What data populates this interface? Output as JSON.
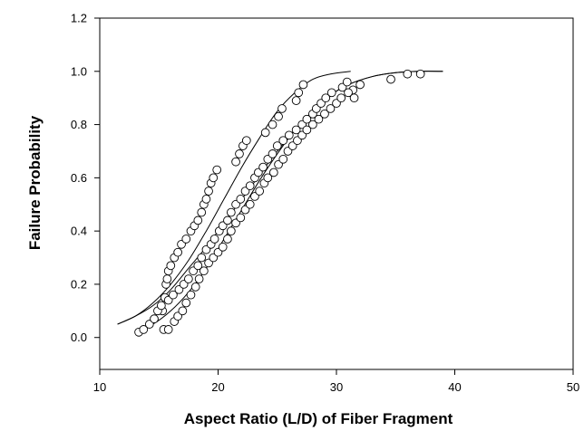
{
  "chart_data": {
    "type": "scatter",
    "xlabel": "Aspect Ratio (L/D) of Fiber Fragment",
    "ylabel": "Failure Probability",
    "xlim": [
      10,
      50
    ],
    "ylim": [
      -0.12,
      1.2
    ],
    "x_ticks": [
      10,
      20,
      30,
      40,
      50
    ],
    "x_tick_labels": [
      "10",
      "20",
      "30",
      "40",
      "50"
    ],
    "y_ticks": [
      0.0,
      0.2,
      0.4,
      0.6,
      0.8,
      1.0,
      1.2
    ],
    "y_tick_labels": [
      "0.0",
      "0.2",
      "0.4",
      "0.6",
      "0.8",
      "1.0",
      "1.2"
    ],
    "grid": false,
    "marker_color": "#ffffff",
    "line_color": "#000000",
    "series": [
      {
        "kind": "points",
        "points": [
          [
            15.3,
            0.1
          ],
          [
            15.5,
            0.15
          ],
          [
            15.6,
            0.2
          ],
          [
            15.7,
            0.22
          ],
          [
            15.8,
            0.25
          ],
          [
            16.0,
            0.27
          ],
          [
            16.3,
            0.3
          ],
          [
            16.6,
            0.32
          ],
          [
            16.9,
            0.35
          ],
          [
            17.3,
            0.37
          ],
          [
            17.7,
            0.4
          ],
          [
            18.0,
            0.42
          ],
          [
            18.3,
            0.44
          ],
          [
            18.6,
            0.47
          ],
          [
            18.8,
            0.5
          ],
          [
            19.0,
            0.52
          ],
          [
            19.2,
            0.55
          ],
          [
            19.4,
            0.58
          ],
          [
            19.6,
            0.6
          ],
          [
            19.9,
            0.63
          ],
          [
            21.5,
            0.66
          ],
          [
            21.8,
            0.69
          ],
          [
            22.1,
            0.72
          ],
          [
            22.4,
            0.74
          ],
          [
            24.0,
            0.77
          ],
          [
            24.6,
            0.8
          ],
          [
            25.1,
            0.83
          ],
          [
            25.4,
            0.86
          ],
          [
            26.6,
            0.89
          ],
          [
            26.8,
            0.92
          ],
          [
            27.2,
            0.95
          ]
        ]
      },
      {
        "kind": "points",
        "points": [
          [
            13.3,
            0.02
          ],
          [
            13.7,
            0.03
          ],
          [
            14.2,
            0.05
          ],
          [
            14.6,
            0.07
          ],
          [
            14.9,
            0.1
          ],
          [
            15.2,
            0.12
          ],
          [
            15.8,
            0.14
          ],
          [
            16.2,
            0.16
          ],
          [
            16.7,
            0.18
          ],
          [
            17.1,
            0.2
          ],
          [
            17.5,
            0.22
          ],
          [
            17.9,
            0.25
          ],
          [
            18.3,
            0.27
          ],
          [
            18.6,
            0.3
          ],
          [
            19.0,
            0.33
          ],
          [
            19.4,
            0.35
          ],
          [
            19.7,
            0.37
          ],
          [
            20.1,
            0.4
          ],
          [
            20.4,
            0.42
          ],
          [
            20.8,
            0.44
          ],
          [
            21.1,
            0.47
          ],
          [
            21.5,
            0.5
          ],
          [
            21.9,
            0.52
          ],
          [
            22.3,
            0.55
          ],
          [
            22.7,
            0.57
          ],
          [
            23.1,
            0.6
          ],
          [
            23.4,
            0.62
          ],
          [
            23.8,
            0.64
          ],
          [
            24.2,
            0.67
          ],
          [
            24.6,
            0.69
          ],
          [
            25.0,
            0.72
          ],
          [
            25.5,
            0.74
          ],
          [
            26.0,
            0.76
          ],
          [
            26.6,
            0.78
          ],
          [
            27.1,
            0.8
          ],
          [
            27.5,
            0.82
          ],
          [
            28.0,
            0.84
          ],
          [
            28.3,
            0.86
          ],
          [
            28.7,
            0.88
          ],
          [
            29.1,
            0.9
          ],
          [
            29.6,
            0.92
          ],
          [
            30.5,
            0.94
          ],
          [
            30.9,
            0.96
          ],
          [
            31.4,
            0.93
          ],
          [
            32.0,
            0.95
          ],
          [
            34.6,
            0.97
          ],
          [
            36.0,
            0.99
          ],
          [
            37.1,
            0.99
          ]
        ]
      },
      {
        "kind": "points",
        "points": [
          [
            15.4,
            0.03
          ],
          [
            15.8,
            0.03
          ],
          [
            16.3,
            0.06
          ],
          [
            16.6,
            0.08
          ],
          [
            17.0,
            0.1
          ],
          [
            17.3,
            0.13
          ],
          [
            17.7,
            0.16
          ],
          [
            18.1,
            0.19
          ],
          [
            18.4,
            0.22
          ],
          [
            18.8,
            0.25
          ],
          [
            19.2,
            0.28
          ],
          [
            19.6,
            0.3
          ],
          [
            20.0,
            0.32
          ],
          [
            20.4,
            0.34
          ],
          [
            20.8,
            0.37
          ],
          [
            21.1,
            0.4
          ],
          [
            21.5,
            0.43
          ],
          [
            21.9,
            0.45
          ],
          [
            22.3,
            0.48
          ],
          [
            22.7,
            0.5
          ],
          [
            23.1,
            0.53
          ],
          [
            23.5,
            0.55
          ],
          [
            23.9,
            0.58
          ],
          [
            24.2,
            0.6
          ],
          [
            24.7,
            0.62
          ],
          [
            25.1,
            0.65
          ],
          [
            25.5,
            0.67
          ],
          [
            25.9,
            0.7
          ],
          [
            26.3,
            0.72
          ],
          [
            26.7,
            0.74
          ],
          [
            27.1,
            0.76
          ],
          [
            27.5,
            0.78
          ],
          [
            28.0,
            0.8
          ],
          [
            28.5,
            0.82
          ],
          [
            29.0,
            0.84
          ],
          [
            29.5,
            0.86
          ],
          [
            30.0,
            0.88
          ],
          [
            30.4,
            0.9
          ],
          [
            31.0,
            0.92
          ],
          [
            31.5,
            0.9
          ]
        ]
      },
      {
        "kind": "curve",
        "points": [
          [
            11.5,
            0.05
          ],
          [
            13,
            0.08
          ],
          [
            14.5,
            0.13
          ],
          [
            16,
            0.2
          ],
          [
            17.5,
            0.29
          ],
          [
            19,
            0.4
          ],
          [
            20.5,
            0.52
          ],
          [
            22,
            0.64
          ],
          [
            23.5,
            0.75
          ],
          [
            25,
            0.85
          ],
          [
            26.5,
            0.92
          ],
          [
            28,
            0.97
          ],
          [
            29.5,
            0.99
          ],
          [
            31.2,
            1.0
          ]
        ]
      },
      {
        "kind": "curve",
        "points": [
          [
            11.5,
            0.05
          ],
          [
            13,
            0.08
          ],
          [
            14.5,
            0.12
          ],
          [
            16,
            0.18
          ],
          [
            17.5,
            0.26
          ],
          [
            19,
            0.34
          ],
          [
            20.5,
            0.43
          ],
          [
            22,
            0.52
          ],
          [
            23.5,
            0.61
          ],
          [
            25,
            0.7
          ],
          [
            26.5,
            0.78
          ],
          [
            28,
            0.85
          ],
          [
            29.5,
            0.91
          ],
          [
            31,
            0.95
          ],
          [
            33,
            0.98
          ],
          [
            35,
            0.995
          ],
          [
            37,
            1.0
          ],
          [
            39,
            1.0
          ]
        ]
      },
      {
        "kind": "curve",
        "points": [
          [
            13,
            0.02
          ],
          [
            14.5,
            0.05
          ],
          [
            16,
            0.1
          ],
          [
            17.5,
            0.17
          ],
          [
            19,
            0.26
          ],
          [
            20.5,
            0.37
          ],
          [
            22,
            0.48
          ],
          [
            23.5,
            0.59
          ],
          [
            25,
            0.69
          ],
          [
            26.5,
            0.78
          ],
          [
            28,
            0.85
          ],
          [
            29.5,
            0.91
          ],
          [
            31,
            0.95
          ],
          [
            33,
            0.98
          ],
          [
            35,
            0.995
          ],
          [
            37,
            1.0
          ],
          [
            39,
            1.0
          ]
        ]
      }
    ]
  }
}
